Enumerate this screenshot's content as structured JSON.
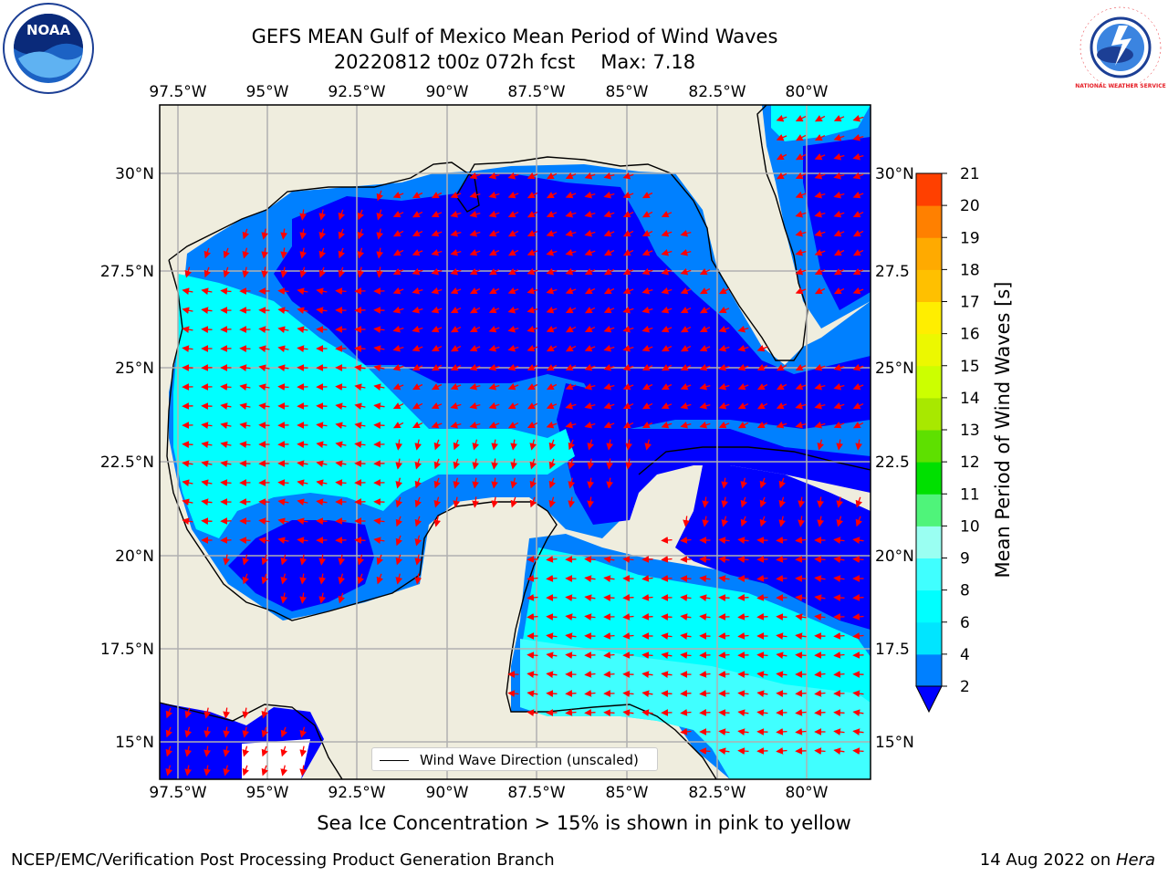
{
  "header": {
    "title_line1": "GEFS MEAN Gulf of Mexico Mean Period of Wind Waves",
    "title_date": "20220812 t00z 072h fcst",
    "title_max": "Max: 7.18"
  },
  "logos": {
    "noaa_text": "NOAA",
    "nws_text": "NATIONAL WEATHER SERVICE"
  },
  "map": {
    "lon_labels": [
      "97.5°W",
      "95°W",
      "92.5°W",
      "90°W",
      "87.5°W",
      "85°W",
      "82.5°W",
      "80°W"
    ],
    "lat_labels_left": [
      "30°N",
      "27.5°N",
      "25°N",
      "22.5°N",
      "20°N",
      "17.5°N",
      "15°N"
    ],
    "lat_labels_right": [
      "30°N",
      "27.5",
      "25°N",
      "22.5",
      "20°N",
      "17.5",
      "15°N"
    ],
    "legend_label": "Wind Wave Direction (unscaled)",
    "colors": {
      "land": "#efedde",
      "ocean_deep": "#0000ff",
      "ocean_mid": "#0080ff",
      "ocean_cyan": "#00ffff",
      "ocean_light": "#40ffff",
      "grid": "#b0b0b0",
      "arrow": "#ff0000"
    }
  },
  "colorbar": {
    "label": "Mean Period of Wind Waves [s]",
    "ticks": [
      "2",
      "4",
      "6",
      "8",
      "9",
      "10",
      "11",
      "12",
      "13",
      "14",
      "15",
      "16",
      "17",
      "18",
      "19",
      "20",
      "21"
    ],
    "colors": [
      "#0080ff",
      "#00e5ff",
      "#00ffff",
      "#40ffff",
      "#9afff2",
      "#4ff47a",
      "#00e000",
      "#5ee000",
      "#a8e800",
      "#ccff00",
      "#ecf800",
      "#ffee00",
      "#ffc000",
      "#ffaa00",
      "#ff8000",
      "#ff4000",
      "#ff2000",
      "#ff0000"
    ],
    "under_color": "#0000ff"
  },
  "footer": {
    "note": "Sea Ice Concentration > 15% is shown in pink to yellow",
    "org": "NCEP/EMC/Verification Post Processing Product Generation Branch",
    "date": "14 Aug 2022 on ",
    "host": "Hera"
  }
}
